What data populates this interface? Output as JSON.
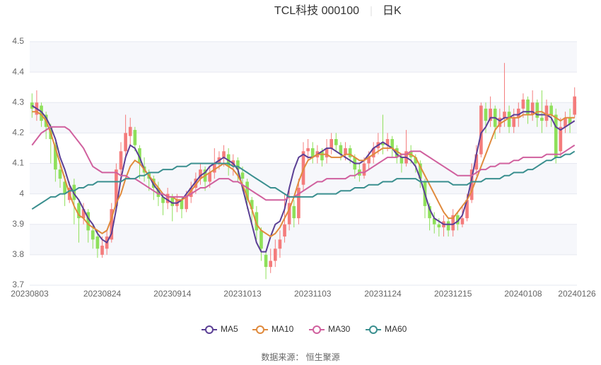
{
  "chart_data": {
    "type": "candlestick",
    "title": "TCL科技 000100",
    "subtitle": "日K",
    "source": "数据来源： 恒生聚源",
    "up_color": "#f47c7c",
    "down_color": "#8ee05a",
    "ylim": [
      3.7,
      4.5
    ],
    "yticks": [
      3.7,
      3.8,
      3.9,
      4,
      4.1,
      4.2,
      4.3,
      4.4,
      4.5
    ],
    "grid": true,
    "categories": [
      "20230803",
      null,
      null,
      null,
      null,
      null,
      null,
      null,
      null,
      null,
      null,
      null,
      null,
      null,
      null,
      "20230824",
      null,
      null,
      null,
      null,
      null,
      null,
      null,
      null,
      null,
      null,
      null,
      null,
      null,
      null,
      "20230914",
      null,
      null,
      null,
      null,
      null,
      null,
      null,
      null,
      null,
      null,
      null,
      null,
      null,
      null,
      "20231013",
      null,
      null,
      null,
      null,
      null,
      null,
      null,
      null,
      null,
      null,
      null,
      null,
      null,
      null,
      "20231103",
      null,
      null,
      null,
      null,
      null,
      null,
      null,
      null,
      null,
      null,
      null,
      null,
      null,
      null,
      "20231124",
      null,
      null,
      null,
      null,
      null,
      null,
      null,
      null,
      null,
      null,
      null,
      null,
      null,
      null,
      "20231215",
      null,
      null,
      null,
      null,
      null,
      null,
      null,
      null,
      null,
      null,
      null,
      null,
      null,
      null,
      "20240108",
      null,
      null,
      null,
      null,
      null,
      null,
      null,
      null,
      null,
      null,
      "20240126"
    ],
    "candles": [
      [
        4.3,
        4.28,
        4.25,
        4.33
      ],
      [
        4.26,
        4.3,
        4.24,
        4.34
      ],
      [
        4.29,
        4.24,
        4.22,
        4.3
      ],
      [
        4.26,
        4.22,
        4.18,
        4.27
      ],
      [
        4.22,
        4.18,
        4.1,
        4.23
      ],
      [
        4.16,
        4.08,
        4.04,
        4.17
      ],
      [
        4.08,
        4.05,
        4.02,
        4.1
      ],
      [
        4.04,
        4.0,
        3.96,
        4.06
      ],
      [
        3.98,
        4.02,
        3.97,
        4.04
      ],
      [
        4.03,
        3.98,
        3.9,
        4.05
      ],
      [
        3.97,
        3.92,
        3.84,
        3.98
      ],
      [
        3.92,
        3.95,
        3.9,
        3.97
      ],
      [
        3.94,
        3.88,
        3.84,
        3.95
      ],
      [
        3.88,
        3.85,
        3.82,
        3.9
      ],
      [
        3.86,
        3.82,
        3.79,
        3.88
      ],
      [
        3.8,
        3.83,
        3.79,
        3.86
      ],
      [
        3.82,
        3.86,
        3.8,
        3.88
      ],
      [
        3.85,
        3.95,
        3.84,
        3.97
      ],
      [
        3.96,
        4.08,
        3.95,
        4.1
      ],
      [
        4.08,
        4.14,
        4.06,
        4.17
      ],
      [
        4.14,
        4.2,
        4.12,
        4.26
      ],
      [
        4.19,
        4.22,
        4.16,
        4.25
      ],
      [
        4.21,
        4.16,
        4.14,
        4.22
      ],
      [
        4.15,
        4.1,
        4.05,
        4.16
      ],
      [
        4.09,
        4.07,
        4.04,
        4.12
      ],
      [
        4.07,
        4.05,
        4.01,
        4.08
      ],
      [
        4.05,
        4.02,
        3.98,
        4.06
      ],
      [
        4.02,
        3.99,
        3.96,
        4.04
      ],
      [
        3.99,
        3.97,
        3.93,
        4.0
      ],
      [
        3.97,
        4.0,
        3.95,
        4.02
      ],
      [
        3.99,
        3.96,
        3.91,
        4.0
      ],
      [
        3.96,
        3.98,
        3.94,
        4.0
      ],
      [
        3.98,
        3.95,
        3.92,
        3.99
      ],
      [
        3.95,
        3.99,
        3.94,
        4.01
      ],
      [
        3.99,
        4.02,
        3.97,
        4.04
      ],
      [
        4.02,
        4.05,
        4.0,
        4.07
      ],
      [
        4.05,
        4.08,
        4.03,
        4.1
      ],
      [
        4.08,
        4.04,
        4.01,
        4.09
      ],
      [
        4.04,
        4.07,
        4.02,
        4.09
      ],
      [
        4.07,
        4.1,
        4.05,
        4.15
      ],
      [
        4.1,
        4.12,
        4.08,
        4.14
      ],
      [
        4.12,
        4.14,
        4.09,
        4.16
      ],
      [
        4.13,
        4.09,
        4.06,
        4.15
      ],
      [
        4.09,
        4.11,
        4.06,
        4.13
      ],
      [
        4.11,
        4.08,
        4.04,
        4.12
      ],
      [
        4.07,
        4.05,
        4.01,
        4.09
      ],
      [
        4.04,
        3.98,
        3.95,
        4.05
      ],
      [
        3.98,
        3.95,
        3.9,
        3.99
      ],
      [
        3.94,
        3.88,
        3.85,
        3.96
      ],
      [
        3.88,
        3.82,
        3.78,
        3.89
      ],
      [
        3.8,
        3.76,
        3.72,
        3.81
      ],
      [
        3.76,
        3.78,
        3.74,
        3.82
      ],
      [
        3.78,
        3.82,
        3.76,
        3.85
      ],
      [
        3.82,
        3.85,
        3.79,
        3.88
      ],
      [
        3.86,
        3.9,
        3.84,
        4.0
      ],
      [
        3.9,
        3.97,
        3.88,
        4.02
      ],
      [
        3.96,
        3.92,
        3.89,
        3.98
      ],
      [
        3.92,
        4.02,
        3.9,
        4.05
      ],
      [
        4.03,
        4.14,
        4.01,
        4.17
      ],
      [
        4.14,
        4.15,
        4.11,
        4.18
      ],
      [
        4.15,
        4.12,
        4.1,
        4.17
      ],
      [
        4.12,
        4.14,
        4.1,
        4.16
      ],
      [
        4.14,
        4.11,
        4.09,
        4.15
      ],
      [
        4.12,
        4.15,
        4.1,
        4.18
      ],
      [
        4.15,
        4.18,
        4.13,
        4.2
      ],
      [
        4.18,
        4.16,
        4.14,
        4.2
      ],
      [
        4.16,
        4.13,
        4.11,
        4.17
      ],
      [
        4.13,
        4.15,
        4.11,
        4.17
      ],
      [
        4.15,
        4.12,
        4.1,
        4.16
      ],
      [
        4.12,
        4.08,
        4.05,
        4.13
      ],
      [
        4.08,
        4.06,
        4.04,
        4.1
      ],
      [
        4.06,
        4.1,
        4.05,
        4.12
      ],
      [
        4.1,
        4.12,
        4.08,
        4.14
      ],
      [
        4.12,
        4.15,
        4.1,
        4.17
      ],
      [
        4.15,
        4.17,
        4.13,
        4.2
      ],
      [
        4.17,
        4.16,
        4.13,
        4.26
      ],
      [
        4.16,
        4.18,
        4.14,
        4.2
      ],
      [
        4.18,
        4.15,
        4.12,
        4.19
      ],
      [
        4.15,
        4.12,
        4.1,
        4.16
      ],
      [
        4.12,
        4.1,
        4.07,
        4.13
      ],
      [
        4.1,
        4.14,
        4.09,
        4.21
      ],
      [
        4.14,
        4.12,
        4.1,
        4.16
      ],
      [
        4.12,
        4.1,
        4.07,
        4.13
      ],
      [
        4.1,
        4.05,
        4.02,
        4.11
      ],
      [
        4.04,
        3.96,
        3.92,
        4.05
      ],
      [
        3.96,
        3.92,
        3.88,
        3.97
      ],
      [
        3.92,
        3.9,
        3.87,
        3.94
      ],
      [
        3.9,
        3.89,
        3.86,
        3.92
      ],
      [
        3.89,
        3.91,
        3.86,
        3.93
      ],
      [
        3.91,
        3.88,
        3.86,
        3.92
      ],
      [
        3.88,
        3.93,
        3.86,
        3.95
      ],
      [
        3.93,
        3.9,
        3.88,
        3.94
      ],
      [
        3.9,
        3.92,
        3.89,
        3.96
      ],
      [
        3.92,
        3.98,
        3.91,
        4.0
      ],
      [
        3.98,
        4.08,
        3.97,
        4.1
      ],
      [
        4.08,
        4.13,
        4.06,
        4.16
      ],
      [
        4.13,
        4.29,
        4.12,
        4.3
      ],
      [
        4.28,
        4.24,
        4.2,
        4.3
      ],
      [
        4.24,
        4.28,
        4.22,
        4.32
      ],
      [
        4.28,
        4.22,
        4.18,
        4.29
      ],
      [
        4.22,
        4.25,
        4.2,
        4.28
      ],
      [
        4.25,
        4.27,
        4.22,
        4.43
      ],
      [
        4.27,
        4.22,
        4.2,
        4.29
      ],
      [
        4.22,
        4.25,
        4.2,
        4.28
      ],
      [
        4.25,
        4.28,
        4.22,
        4.3
      ],
      [
        4.28,
        4.31,
        4.25,
        4.33
      ],
      [
        4.31,
        4.26,
        4.23,
        4.32
      ],
      [
        4.26,
        4.3,
        4.24,
        4.34
      ],
      [
        4.3,
        4.25,
        4.22,
        4.31
      ],
      [
        4.25,
        4.24,
        4.2,
        4.34
      ],
      [
        4.24,
        4.29,
        4.22,
        4.31
      ],
      [
        4.29,
        4.26,
        4.22,
        4.3
      ],
      [
        4.26,
        4.12,
        4.1,
        4.28
      ],
      [
        4.14,
        4.22,
        4.12,
        4.25
      ],
      [
        4.22,
        4.25,
        4.2,
        4.27
      ],
      [
        4.25,
        4.23,
        4.2,
        4.28
      ],
      [
        4.26,
        4.32,
        4.25,
        4.35
      ]
    ],
    "series": [
      {
        "name": "MA5",
        "color": "#5b3f95",
        "values": [
          4.29,
          4.28,
          4.27,
          4.25,
          4.22,
          4.18,
          4.12,
          4.08,
          4.03,
          4.0,
          3.98,
          3.95,
          3.92,
          3.9,
          3.87,
          3.85,
          3.84,
          3.87,
          3.95,
          4.05,
          4.12,
          4.16,
          4.15,
          4.12,
          4.08,
          4.06,
          4.03,
          4.01,
          3.99,
          3.98,
          3.97,
          3.97,
          3.98,
          4.0,
          4.02,
          4.04,
          4.06,
          4.07,
          4.09,
          4.1,
          4.11,
          4.12,
          4.11,
          4.1,
          4.08,
          4.02,
          3.96,
          3.9,
          3.84,
          3.81,
          3.81,
          3.86,
          3.9,
          3.91,
          3.95,
          4.02,
          4.08,
          4.12,
          4.13,
          4.12,
          4.12,
          4.13,
          4.14,
          4.15,
          4.15,
          4.14,
          4.13,
          4.12,
          4.11,
          4.1,
          4.1,
          4.11,
          4.13,
          4.15,
          4.16,
          4.17,
          4.16,
          4.15,
          4.13,
          4.12,
          4.12,
          4.11,
          4.09,
          4.05,
          4.0,
          3.95,
          3.92,
          3.91,
          3.9,
          3.9,
          3.9,
          3.91,
          3.93,
          3.98,
          4.05,
          4.13,
          4.2,
          4.22,
          4.25,
          4.25,
          4.24,
          4.25,
          4.25,
          4.26,
          4.26,
          4.27,
          4.27,
          4.27,
          4.26,
          4.26,
          4.26,
          4.25,
          4.22,
          4.21,
          4.22,
          4.23,
          4.24
        ]
      },
      {
        "name": "MA10",
        "color": "#e08a3c",
        "values": [
          4.27,
          4.27,
          4.26,
          4.24,
          4.2,
          4.15,
          4.1,
          4.05,
          4.0,
          3.96,
          3.93,
          3.92,
          3.9,
          3.89,
          3.88,
          3.87,
          3.88,
          3.92,
          3.97,
          4.0,
          4.05,
          4.09,
          4.11,
          4.1,
          4.08,
          4.06,
          4.04,
          4.02,
          4.0,
          3.99,
          3.99,
          3.98,
          3.98,
          3.99,
          4.01,
          4.03,
          4.05,
          4.06,
          4.07,
          4.08,
          4.09,
          4.1,
          4.09,
          4.08,
          4.06,
          4.03,
          3.99,
          3.95,
          3.9,
          3.88,
          3.87,
          3.86,
          3.87,
          3.89,
          3.92,
          3.95,
          3.99,
          4.04,
          4.08,
          4.11,
          4.12,
          4.13,
          4.13,
          4.13,
          4.12,
          4.12,
          4.12,
          4.13,
          4.13,
          4.12,
          4.11,
          4.11,
          4.12,
          4.13,
          4.14,
          4.15,
          4.15,
          4.15,
          4.14,
          4.13,
          4.13,
          4.13,
          4.12,
          4.09,
          4.06,
          4.03,
          4.0,
          3.97,
          3.94,
          3.92,
          3.92,
          3.94,
          3.96,
          3.98,
          4.01,
          4.05,
          4.09,
          4.13,
          4.17,
          4.21,
          4.23,
          4.24,
          4.25,
          4.25,
          4.25,
          4.26,
          4.26,
          4.26,
          4.27,
          4.27,
          4.26,
          4.26,
          4.25,
          4.24,
          4.25,
          4.25,
          4.25
        ]
      },
      {
        "name": "MA30",
        "color": "#d0609e",
        "values": [
          4.16,
          4.18,
          4.2,
          4.21,
          4.22,
          4.22,
          4.22,
          4.22,
          4.21,
          4.19,
          4.17,
          4.15,
          4.12,
          4.09,
          4.08,
          4.07,
          4.07,
          4.07,
          4.07,
          4.06,
          4.06,
          4.05,
          4.05,
          4.04,
          4.03,
          4.02,
          4.01,
          4.0,
          4.0,
          3.99,
          3.99,
          3.99,
          3.99,
          3.99,
          4.0,
          4.01,
          4.02,
          4.02,
          4.03,
          4.04,
          4.05,
          4.05,
          4.05,
          4.04,
          4.04,
          4.03,
          4.02,
          4.01,
          4.0,
          3.99,
          3.98,
          3.98,
          3.98,
          3.98,
          3.98,
          3.99,
          3.99,
          4.0,
          4.01,
          4.02,
          4.03,
          4.04,
          4.04,
          4.05,
          4.05,
          4.05,
          4.05,
          4.05,
          4.06,
          4.06,
          4.07,
          4.07,
          4.08,
          4.09,
          4.1,
          4.11,
          4.12,
          4.12,
          4.12,
          4.13,
          4.13,
          4.14,
          4.14,
          4.14,
          4.13,
          4.12,
          4.11,
          4.1,
          4.09,
          4.08,
          4.07,
          4.06,
          4.06,
          4.06,
          4.06,
          4.07,
          4.08,
          4.08,
          4.09,
          4.09,
          4.1,
          4.1,
          4.1,
          4.11,
          4.11,
          4.12,
          4.12,
          4.12,
          4.12,
          4.12,
          4.13,
          4.13,
          4.13,
          4.13,
          4.14,
          4.15,
          4.16
        ]
      },
      {
        "name": "MA60",
        "color": "#3a8f8f",
        "values": [
          3.95,
          3.96,
          3.97,
          3.98,
          3.99,
          3.99,
          4.0,
          4.0,
          4.01,
          4.01,
          4.02,
          4.02,
          4.03,
          4.03,
          4.04,
          4.04,
          4.04,
          4.04,
          4.04,
          4.04,
          4.05,
          4.05,
          4.05,
          4.06,
          4.06,
          4.07,
          4.07,
          4.07,
          4.08,
          4.08,
          4.08,
          4.09,
          4.09,
          4.09,
          4.1,
          4.1,
          4.1,
          4.1,
          4.1,
          4.1,
          4.1,
          4.1,
          4.1,
          4.09,
          4.09,
          4.08,
          4.07,
          4.06,
          4.05,
          4.04,
          4.03,
          4.02,
          4.02,
          4.01,
          4.0,
          3.99,
          3.99,
          3.99,
          3.99,
          3.99,
          3.99,
          4.0,
          4.0,
          4.0,
          4.0,
          4.0,
          4.01,
          4.01,
          4.01,
          4.02,
          4.02,
          4.02,
          4.03,
          4.03,
          4.03,
          4.04,
          4.04,
          4.04,
          4.05,
          4.05,
          4.05,
          4.05,
          4.05,
          4.04,
          4.04,
          4.04,
          4.04,
          4.04,
          4.04,
          4.04,
          4.03,
          4.03,
          4.03,
          4.03,
          4.04,
          4.04,
          4.04,
          4.05,
          4.05,
          4.05,
          4.05,
          4.06,
          4.06,
          4.07,
          4.07,
          4.07,
          4.08,
          4.08,
          4.09,
          4.1,
          4.11,
          4.11,
          4.12,
          4.12,
          4.13,
          4.13,
          4.14
        ]
      }
    ]
  }
}
